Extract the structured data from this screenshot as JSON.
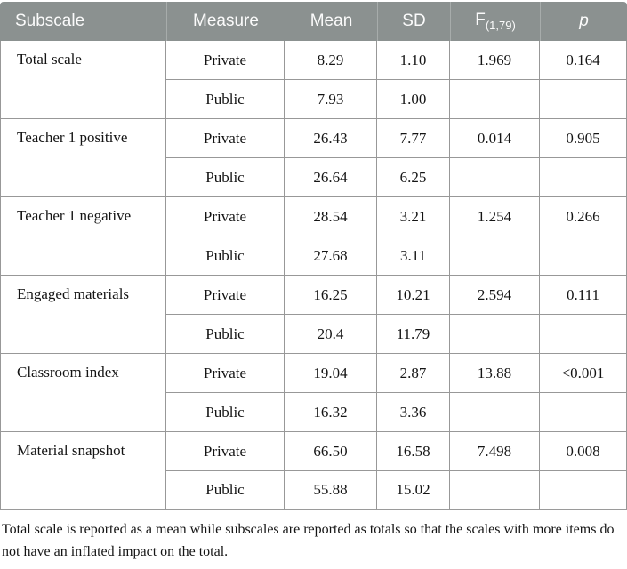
{
  "colors": {
    "header_bg": "#8b9190",
    "header_divider": "#a7acab",
    "header_text": "#fbfbfb",
    "grid_border": "#989898",
    "body_text": "#141414"
  },
  "table": {
    "headers": {
      "subscale": "Subscale",
      "measure": "Measure",
      "mean": "Mean",
      "sd": "SD",
      "f_base": "F",
      "f_sub": "(1,79)",
      "p": "p"
    },
    "measure_labels": {
      "private": "Private",
      "public": "Public"
    },
    "groups": [
      {
        "subscale": "Total scale",
        "private_mean": "8.29",
        "private_sd": "1.10",
        "public_mean": "7.93",
        "public_sd": "1.00",
        "f": "1.969",
        "p": "0.164"
      },
      {
        "subscale": "Teacher 1 positive",
        "private_mean": "26.43",
        "private_sd": "7.77",
        "public_mean": "26.64",
        "public_sd": "6.25",
        "f": "0.014",
        "p": "0.905"
      },
      {
        "subscale": "Teacher 1 negative",
        "private_mean": "28.54",
        "private_sd": "3.21",
        "public_mean": "27.68",
        "public_sd": "3.11",
        "f": "1.254",
        "p": "0.266"
      },
      {
        "subscale": "Engaged materials",
        "private_mean": "16.25",
        "private_sd": "10.21",
        "public_mean": "20.4",
        "public_sd": "11.79",
        "f": "2.594",
        "p": "0.111"
      },
      {
        "subscale": "Classroom index",
        "private_mean": "19.04",
        "private_sd": "2.87",
        "public_mean": "16.32",
        "public_sd": "3.36",
        "f": "13.88",
        "p": "<0.001"
      },
      {
        "subscale": "Material snapshot",
        "private_mean": "66.50",
        "private_sd": "16.58",
        "public_mean": "55.88",
        "public_sd": "15.02",
        "f": "7.498",
        "p": "0.008"
      }
    ]
  },
  "footnote": "Total scale is reported as a mean while subscales are reported as totals so that the scales with more items do not have an inflated impact on the total."
}
